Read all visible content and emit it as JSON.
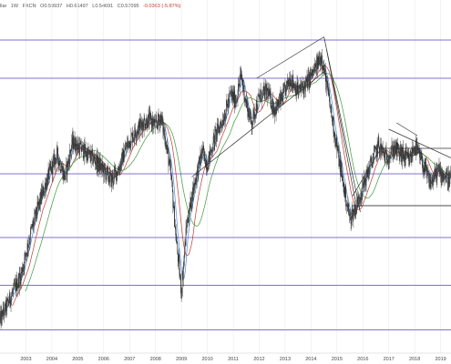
{
  "header": {
    "symbol_prefix": "llar",
    "interval": "1W",
    "ticker": "FXCN",
    "open": "O0.59937",
    "high": "H0.61497",
    "low": "L0.54691",
    "close": "C0.57095",
    "change": "-0.0363 (-5.87%)"
  },
  "chart_data": {
    "type": "candlestick",
    "title": "",
    "xlabel": "",
    "ylabel": "",
    "x_range": [
      2002.0,
      2019.4
    ],
    "y_range": [
      0.0,
      1.0
    ],
    "y_axis_labels_visible": false,
    "x_ticks": [
      "2003",
      "2004",
      "2005",
      "2006",
      "2007",
      "2008",
      "2009",
      "2010",
      "2011",
      "2012",
      "2013",
      "2014",
      "2015",
      "2016",
      "2017",
      "2018",
      "2019"
    ],
    "price_keyframes": [
      [
        2002.0,
        0.08
      ],
      [
        2002.4,
        0.15
      ],
      [
        2002.8,
        0.22
      ],
      [
        2003.2,
        0.36
      ],
      [
        2003.6,
        0.47
      ],
      [
        2003.9,
        0.54
      ],
      [
        2004.2,
        0.6
      ],
      [
        2004.5,
        0.53
      ],
      [
        2004.8,
        0.64
      ],
      [
        2005.1,
        0.62
      ],
      [
        2005.4,
        0.6
      ],
      [
        2005.7,
        0.58
      ],
      [
        2006.0,
        0.55
      ],
      [
        2006.3,
        0.52
      ],
      [
        2006.6,
        0.56
      ],
      [
        2006.9,
        0.63
      ],
      [
        2007.2,
        0.67
      ],
      [
        2007.5,
        0.7
      ],
      [
        2007.8,
        0.71
      ],
      [
        2008.0,
        0.69
      ],
      [
        2008.2,
        0.72
      ],
      [
        2008.4,
        0.64
      ],
      [
        2008.6,
        0.53
      ],
      [
        2008.8,
        0.33
      ],
      [
        2009.0,
        0.17
      ],
      [
        2009.2,
        0.38
      ],
      [
        2009.5,
        0.51
      ],
      [
        2009.8,
        0.61
      ],
      [
        2010.0,
        0.57
      ],
      [
        2010.3,
        0.66
      ],
      [
        2010.6,
        0.71
      ],
      [
        2010.9,
        0.79
      ],
      [
        2011.1,
        0.77
      ],
      [
        2011.3,
        0.85
      ],
      [
        2011.5,
        0.76
      ],
      [
        2011.7,
        0.7
      ],
      [
        2012.0,
        0.78
      ],
      [
        2012.3,
        0.8
      ],
      [
        2012.6,
        0.74
      ],
      [
        2012.9,
        0.78
      ],
      [
        2013.2,
        0.84
      ],
      [
        2013.5,
        0.8
      ],
      [
        2013.8,
        0.82
      ],
      [
        2014.1,
        0.86
      ],
      [
        2014.4,
        0.91
      ],
      [
        2014.6,
        0.82
      ],
      [
        2014.8,
        0.72
      ],
      [
        2015.0,
        0.62
      ],
      [
        2015.3,
        0.48
      ],
      [
        2015.5,
        0.4
      ],
      [
        2015.7,
        0.43
      ],
      [
        2016.0,
        0.5
      ],
      [
        2016.3,
        0.57
      ],
      [
        2016.6,
        0.63
      ],
      [
        2016.9,
        0.59
      ],
      [
        2017.2,
        0.62
      ],
      [
        2017.5,
        0.6
      ],
      [
        2017.8,
        0.58
      ],
      [
        2018.0,
        0.63
      ],
      [
        2018.3,
        0.57
      ],
      [
        2018.6,
        0.51
      ],
      [
        2018.9,
        0.55
      ],
      [
        2019.2,
        0.53
      ],
      [
        2019.4,
        0.52
      ]
    ],
    "horizontal_levels": [
      0.05,
      0.19,
      0.34,
      0.54,
      0.84,
      0.96
    ],
    "lower_box_level": 0.44,
    "trendlines": [
      {
        "from": [
          2009.4,
          0.53
        ],
        "to": [
          2014.5,
          0.86
        ]
      },
      {
        "from": [
          2011.9,
          0.84
        ],
        "to": [
          2014.5,
          0.97
        ]
      },
      {
        "from": [
          2014.5,
          0.97
        ],
        "to": [
          2015.9,
          0.42
        ]
      },
      {
        "from": [
          2014.6,
          0.93
        ],
        "to": [
          2015.7,
          0.46
        ]
      },
      {
        "from": [
          2015.6,
          0.47
        ],
        "to": [
          2016.7,
          0.62
        ]
      },
      {
        "from": [
          2016.7,
          0.62
        ],
        "to": [
          2019.4,
          0.62
        ]
      },
      {
        "from": [
          2017.0,
          0.68
        ],
        "to": [
          2019.4,
          0.59
        ]
      },
      {
        "from": [
          2017.3,
          0.7
        ],
        "to": [
          2018.1,
          0.66
        ]
      },
      {
        "from": [
          2015.6,
          0.44
        ],
        "to": [
          2019.4,
          0.44
        ]
      }
    ],
    "ma_periods": [
      10,
      26,
      52
    ],
    "colors": {
      "candles": "#2b2b2b",
      "ma_fast": "#4a90e2",
      "ma_mid": "#c0392b",
      "ma_slow": "#3a9a3a",
      "levels": "#6a5acd",
      "trendlines": "#333333",
      "grid": "#e6e6e6",
      "change_negative": "#c0392b"
    }
  }
}
